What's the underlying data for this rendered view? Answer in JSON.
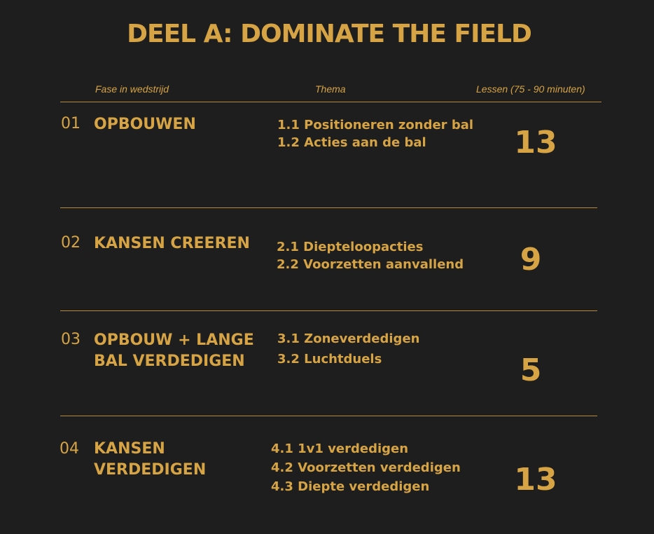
{
  "title": "DEEL A: DOMINATE THE FIELD",
  "headers": {
    "phase": "Fase in wedstrijd",
    "theme": "Thema",
    "lessons": "Lessen  (75 - 90 minuten)"
  },
  "rows": [
    {
      "num": "01",
      "phase": "OPBOUWEN",
      "themes": [
        "1.1 Positioneren zonder bal",
        "1.2 Acties aan de bal"
      ],
      "lessons": "13"
    },
    {
      "num": "02",
      "phase": "KANSEN CREEREN",
      "themes": [
        "2.1 Diepteloopacties",
        "2.2 Voorzetten aanvallend"
      ],
      "lessons": "9"
    },
    {
      "num": "03",
      "phase_lines": [
        "OPBOUW + LANGE",
        "BAL VERDEDIGEN"
      ],
      "themes": [
        "3.1 Zoneverdedigen",
        "3.2 Luchtduels"
      ],
      "lessons": "5"
    },
    {
      "num": "04",
      "phase_lines": [
        "KANSEN",
        "VERDEDIGEN"
      ],
      "themes": [
        "4.1 1v1 verdedigen",
        "4.2 Voorzetten verdedigen",
        "4.3 Diepte verdedigen"
      ],
      "lessons": "13"
    }
  ],
  "colors": {
    "background": "#1e1e1e",
    "accent": "#d6a444"
  }
}
